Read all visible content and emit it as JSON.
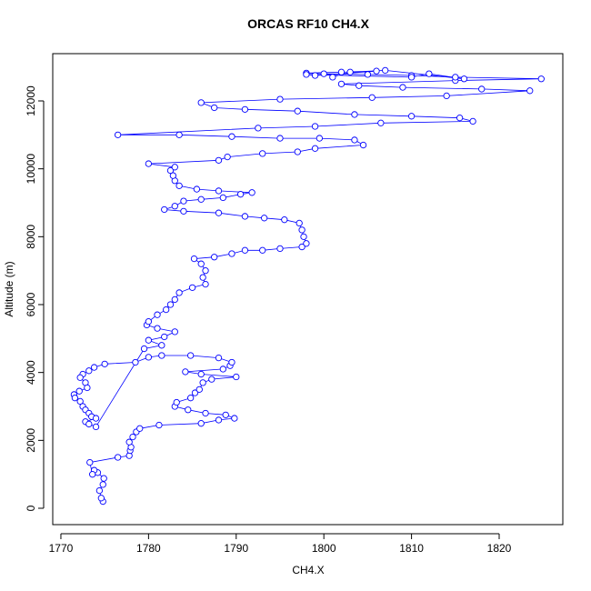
{
  "chart_data": {
    "type": "line",
    "title": "ORCAS RF10 CH4.X",
    "x_label": "CH4.X",
    "y_label": "Altitude (m)",
    "color": "#0000ff",
    "markers": true,
    "xlim": [
      1769.07,
      1827.26
    ],
    "ylim": [
      -482,
      13393
    ],
    "xticks": [
      1770,
      1780,
      1790,
      1800,
      1810,
      1820
    ],
    "yticks": [
      0,
      2000,
      4000,
      6000,
      8000,
      10000,
      12000
    ],
    "x": [
      1774.8,
      1774.6,
      1774.4,
      1774.8,
      1774.9,
      1774.2,
      1773.8,
      1773.6,
      1773.3,
      1776.5,
      1777.8,
      1777.9,
      1778.0,
      1777.8,
      1778.2,
      1778.6,
      1779.0,
      1781.2,
      1786.0,
      1788.0,
      1789.8,
      1788.8,
      1786.5,
      1784.5,
      1783.0,
      1783.2,
      1784.8,
      1785.3,
      1785.8,
      1786.2,
      1787.2,
      1790.0,
      1786.0,
      1784.2,
      1788.5,
      1789.3,
      1789.5,
      1788.0,
      1784.8,
      1781.5,
      1780.0,
      1778.5,
      1775.0,
      1773.8,
      1773.2,
      1772.5,
      1772.2,
      1772.8,
      1773.0,
      1772.1,
      1771.5,
      1771.6,
      1772.2,
      1772.5,
      1772.8,
      1773.2,
      1773.5,
      1774.0,
      1772.8,
      1773.2,
      1774.0,
      1779.5,
      1781.5,
      1780.0,
      1781.8,
      1783.0,
      1781.0,
      1779.8,
      1780.0,
      1781.0,
      1782.0,
      1782.5,
      1783.0,
      1783.5,
      1785.0,
      1786.5,
      1786.2,
      1786.5,
      1786.0,
      1785.2,
      1787.5,
      1789.5,
      1791.0,
      1793.0,
      1795.0,
      1797.5,
      1798.0,
      1797.7,
      1797.5,
      1797.2,
      1795.5,
      1793.2,
      1791.0,
      1788.0,
      1784.0,
      1781.8,
      1783.0,
      1784.0,
      1786.0,
      1788.5,
      1790.5,
      1791.8,
      1788.0,
      1785.5,
      1783.5,
      1783.0,
      1782.8,
      1782.5,
      1783.0,
      1780.0,
      1788.0,
      1789.0,
      1793.0,
      1797.0,
      1799.0,
      1804.5,
      1803.5,
      1799.5,
      1795.0,
      1789.5,
      1783.5,
      1776.5,
      1792.5,
      1799.0,
      1806.5,
      1817.0,
      1815.5,
      1810.0,
      1803.5,
      1797.0,
      1791.0,
      1787.5,
      1786.0,
      1795.0,
      1805.5,
      1814.0,
      1823.5,
      1818.0,
      1809.0,
      1804.0,
      1802.0,
      1815.0,
      1824.8,
      1815.0,
      1810.0,
      1805.0,
      1800.0,
      1798.0,
      1802.0,
      1806.0,
      1799.0,
      1798.0,
      1810.0,
      1812.0,
      1816.0,
      1807.0,
      1803.0,
      1801.0
    ],
    "values": [
      200,
      300,
      520,
      700,
      880,
      1050,
      1120,
      1000,
      1350,
      1500,
      1550,
      1700,
      1800,
      1950,
      2100,
      2250,
      2350,
      2450,
      2500,
      2600,
      2650,
      2750,
      2800,
      2900,
      3000,
      3120,
      3250,
      3400,
      3500,
      3700,
      3800,
      3870,
      3950,
      4020,
      4100,
      4200,
      4300,
      4430,
      4500,
      4500,
      4450,
      4300,
      4250,
      4150,
      4050,
      3950,
      3850,
      3700,
      3550,
      3450,
      3350,
      3250,
      3150,
      3000,
      2900,
      2800,
      2700,
      2650,
      2550,
      2480,
      2400,
      4700,
      4800,
      4950,
      5050,
      5200,
      5300,
      5400,
      5500,
      5700,
      5850,
      6000,
      6150,
      6350,
      6500,
      6600,
      6800,
      7000,
      7200,
      7350,
      7400,
      7500,
      7600,
      7600,
      7650,
      7700,
      7800,
      8000,
      8200,
      8400,
      8500,
      8550,
      8600,
      8700,
      8750,
      8800,
      8900,
      9050,
      9100,
      9150,
      9250,
      9300,
      9350,
      9400,
      9500,
      9650,
      9800,
      9950,
      10050,
      10150,
      10250,
      10350,
      10450,
      10500,
      10600,
      10700,
      10850,
      10900,
      10900,
      10950,
      11000,
      11000,
      11200,
      11250,
      11350,
      11400,
      11500,
      11550,
      11600,
      11700,
      11750,
      11800,
      11950,
      12050,
      12100,
      12150,
      12300,
      12350,
      12400,
      12450,
      12500,
      12600,
      12650,
      12700,
      12750,
      12780,
      12800,
      12820,
      12850,
      12880,
      12750,
      12780,
      12700,
      12800,
      12650,
      12900,
      12850,
      12700
    ]
  }
}
